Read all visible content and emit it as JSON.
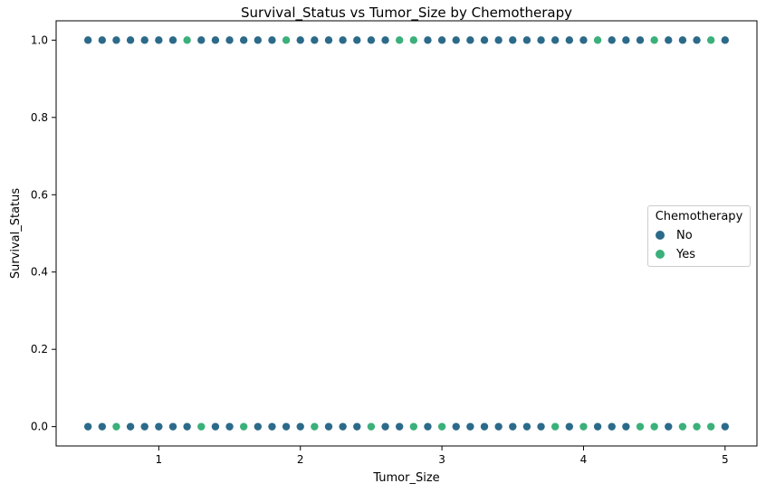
{
  "chart_data": {
    "type": "scatter",
    "title": "Survival_Status vs Tumor_Size by Chemotherapy",
    "xlabel": "Tumor_Size",
    "ylabel": "Survival_Status",
    "xlim": [
      0.275,
      5.225
    ],
    "ylim": [
      -0.05,
      1.05
    ],
    "xticks": [
      1,
      2,
      3,
      4,
      5
    ],
    "xtick_labels": [
      "1",
      "2",
      "3",
      "4",
      "5"
    ],
    "yticks": [
      0.0,
      0.2,
      0.4,
      0.6,
      0.8,
      1.0
    ],
    "ytick_labels": [
      "0.0",
      "0.2",
      "0.4",
      "0.6",
      "0.8",
      "1.0"
    ],
    "grid": false,
    "legend": {
      "title": "Chemotherapy",
      "placement": "center-right"
    },
    "series": [
      {
        "name": "No",
        "color": "#2c6a8a",
        "points": [
          [
            0.5,
            1
          ],
          [
            0.6,
            1
          ],
          [
            0.7,
            1
          ],
          [
            0.8,
            1
          ],
          [
            0.9,
            1
          ],
          [
            1.0,
            1
          ],
          [
            1.1,
            1
          ],
          [
            1.3,
            1
          ],
          [
            1.4,
            1
          ],
          [
            1.5,
            1
          ],
          [
            1.6,
            1
          ],
          [
            1.7,
            1
          ],
          [
            1.8,
            1
          ],
          [
            2.0,
            1
          ],
          [
            2.1,
            1
          ],
          [
            2.2,
            1
          ],
          [
            2.3,
            1
          ],
          [
            2.4,
            1
          ],
          [
            2.5,
            1
          ],
          [
            2.6,
            1
          ],
          [
            2.9,
            1
          ],
          [
            3.0,
            1
          ],
          [
            3.1,
            1
          ],
          [
            3.2,
            1
          ],
          [
            3.3,
            1
          ],
          [
            3.4,
            1
          ],
          [
            3.5,
            1
          ],
          [
            3.6,
            1
          ],
          [
            3.7,
            1
          ],
          [
            3.8,
            1
          ],
          [
            3.9,
            1
          ],
          [
            4.0,
            1
          ],
          [
            4.2,
            1
          ],
          [
            4.3,
            1
          ],
          [
            4.4,
            1
          ],
          [
            4.6,
            1
          ],
          [
            4.7,
            1
          ],
          [
            4.8,
            1
          ],
          [
            5.0,
            1
          ],
          [
            0.5,
            0
          ],
          [
            0.6,
            0
          ],
          [
            0.8,
            0
          ],
          [
            0.9,
            0
          ],
          [
            1.0,
            0
          ],
          [
            1.1,
            0
          ],
          [
            1.2,
            0
          ],
          [
            1.4,
            0
          ],
          [
            1.5,
            0
          ],
          [
            1.7,
            0
          ],
          [
            1.8,
            0
          ],
          [
            1.9,
            0
          ],
          [
            2.0,
            0
          ],
          [
            2.2,
            0
          ],
          [
            2.3,
            0
          ],
          [
            2.4,
            0
          ],
          [
            2.6,
            0
          ],
          [
            2.7,
            0
          ],
          [
            2.9,
            0
          ],
          [
            3.1,
            0
          ],
          [
            3.2,
            0
          ],
          [
            3.3,
            0
          ],
          [
            3.4,
            0
          ],
          [
            3.5,
            0
          ],
          [
            3.6,
            0
          ],
          [
            3.7,
            0
          ],
          [
            3.9,
            0
          ],
          [
            4.1,
            0
          ],
          [
            4.2,
            0
          ],
          [
            4.3,
            0
          ],
          [
            4.6,
            0
          ],
          [
            5.0,
            0
          ]
        ]
      },
      {
        "name": "Yes",
        "color": "#3bb07a",
        "points": [
          [
            1.2,
            1
          ],
          [
            1.9,
            1
          ],
          [
            2.7,
            1
          ],
          [
            2.8,
            1
          ],
          [
            4.1,
            1
          ],
          [
            4.5,
            1
          ],
          [
            4.9,
            1
          ],
          [
            0.7,
            0
          ],
          [
            1.3,
            0
          ],
          [
            1.6,
            0
          ],
          [
            2.1,
            0
          ],
          [
            2.5,
            0
          ],
          [
            2.8,
            0
          ],
          [
            3.0,
            0
          ],
          [
            3.8,
            0
          ],
          [
            4.0,
            0
          ],
          [
            4.4,
            0
          ],
          [
            4.5,
            0
          ],
          [
            4.7,
            0
          ],
          [
            4.8,
            0
          ],
          [
            4.9,
            0
          ]
        ]
      }
    ]
  }
}
